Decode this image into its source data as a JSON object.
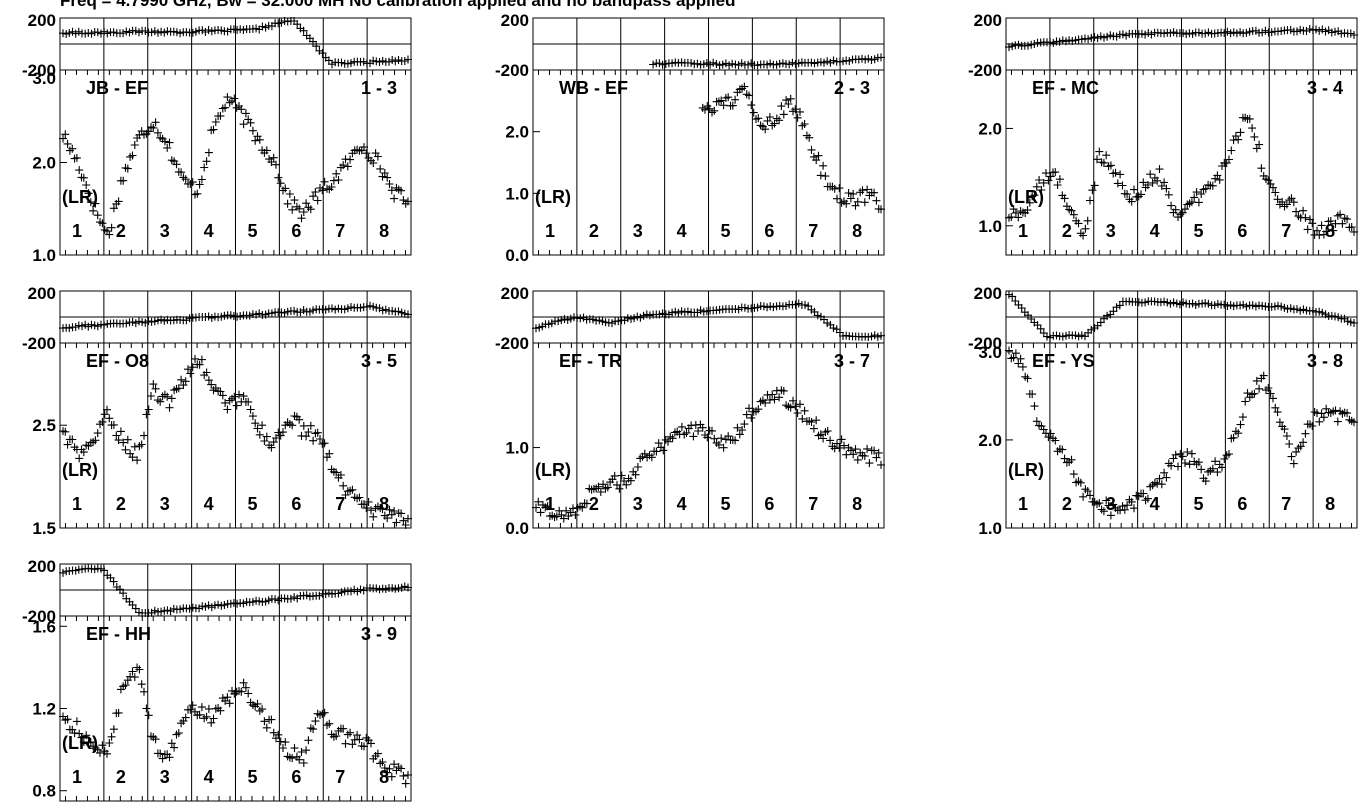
{
  "title": "Freq = 4.7990 GHz, Bw = 32.000 MH   No calibration applied and no bandpass applied",
  "chart_data": [
    {
      "type": "scatter",
      "baseline": "JB - EF",
      "pair": "1 - 3",
      "stokes": "(LR)",
      "channels": [
        "1",
        "2",
        "3",
        "4",
        "5",
        "6",
        "7",
        "8"
      ],
      "phase_ticks": [
        "200",
        "-200"
      ],
      "phase_ylim": [
        -200,
        200
      ],
      "amp_ticks": [
        "3.0",
        "2.0",
        "1.0"
      ],
      "amp_ylim": [
        1.0,
        3.0
      ],
      "amp_values": [
        2.3,
        2.0,
        1.55,
        1.2,
        1.85,
        2.25,
        2.45,
        2.2,
        1.8,
        1.7,
        2.35,
        2.7,
        2.5,
        2.25,
        2.05,
        1.6,
        1.45,
        1.65,
        1.8,
        2.0,
        2.2,
        2.0,
        1.7,
        1.55
      ],
      "phase_values": [
        85,
        88,
        95,
        92,
        100,
        110,
        190,
        -150,
        -140,
        -120
      ]
    },
    {
      "type": "scatter",
      "baseline": "WB - EF",
      "pair": "2 - 3",
      "stokes": "(LR)",
      "channels": [
        "1",
        "2",
        "3",
        "4",
        "5",
        "6",
        "7",
        "8"
      ],
      "phase_ticks": [
        "200",
        "-200"
      ],
      "phase_ylim": [
        -200,
        200
      ],
      "amp_ticks": [
        "2.0",
        "1.0",
        "0.0"
      ],
      "amp_ylim": [
        0.0,
        3.0
      ],
      "amp_values": [
        null,
        null,
        null,
        null,
        null,
        null,
        null,
        null,
        null,
        null,
        null,
        null,
        2.4,
        2.5,
        2.65,
        2.1,
        2.25,
        2.5,
        2.0,
        1.4,
        1.0,
        0.9,
        0.95,
        0.85
      ],
      "phase_values": [
        null,
        null,
        null,
        null,
        -150,
        -155,
        -155,
        -150,
        -130,
        -110
      ]
    },
    {
      "type": "scatter",
      "baseline": "EF - MC",
      "pair": "3 - 4",
      "stokes": "(LR)",
      "channels": [
        "1",
        "2",
        "3",
        "4",
        "5",
        "6",
        "7",
        "8"
      ],
      "phase_ticks": [
        "200",
        "-200"
      ],
      "phase_ylim": [
        -200,
        200
      ],
      "amp_ticks": [
        "2.0",
        "1.0"
      ],
      "amp_ylim": [
        0.7,
        2.6
      ],
      "amp_values": [
        1.1,
        1.15,
        1.4,
        1.55,
        1.2,
        0.85,
        1.75,
        1.6,
        1.25,
        1.4,
        1.55,
        1.15,
        1.2,
        1.35,
        1.5,
        1.85,
        2.2,
        1.55,
        1.25,
        1.2,
        1.0,
        0.95,
        1.05,
        0.95
      ],
      "phase_values": [
        -20,
        10,
        40,
        70,
        80,
        85,
        90,
        100,
        110,
        75
      ]
    },
    {
      "type": "scatter",
      "baseline": "EF - O8",
      "pair": "3 - 5",
      "stokes": "(LR)",
      "channels": [
        "1",
        "2",
        "3",
        "4",
        "5",
        "6",
        "7",
        "8"
      ],
      "phase_ticks": [
        "200",
        "-200"
      ],
      "phase_ylim": [
        -200,
        200
      ],
      "amp_ticks": [
        "2.5",
        "1.5"
      ],
      "amp_ylim": [
        1.5,
        3.3
      ],
      "amp_values": [
        2.45,
        2.2,
        2.35,
        2.6,
        2.35,
        2.2,
        2.85,
        2.7,
        2.95,
        3.15,
        2.85,
        2.7,
        2.8,
        2.5,
        2.25,
        2.6,
        2.45,
        2.4,
        2.1,
        1.85,
        1.7,
        1.65,
        1.6,
        1.55
      ],
      "phase_values": [
        -80,
        -60,
        -40,
        -20,
        0,
        20,
        40,
        60,
        80,
        20
      ]
    },
    {
      "type": "scatter",
      "baseline": "EF - TR",
      "pair": "3 - 7",
      "stokes": "(LR)",
      "channels": [
        "1",
        "2",
        "3",
        "4",
        "5",
        "6",
        "7",
        "8"
      ],
      "phase_ticks": [
        "200",
        "-200"
      ],
      "phase_ylim": [
        -200,
        200
      ],
      "amp_ticks": [
        "1.0",
        "0.0"
      ],
      "amp_ylim": [
        0.0,
        2.3
      ],
      "amp_values": [
        0.25,
        0.2,
        0.15,
        0.3,
        0.5,
        0.55,
        0.6,
        0.8,
        0.95,
        1.15,
        1.25,
        1.2,
        1.1,
        1.05,
        1.35,
        1.6,
        1.7,
        1.55,
        1.4,
        1.2,
        1.05,
        0.95,
        0.9,
        0.85
      ],
      "phase_values": [
        -80,
        0,
        -40,
        20,
        40,
        60,
        80,
        100,
        -140,
        -150
      ]
    },
    {
      "type": "scatter",
      "baseline": "EF - YS",
      "pair": "3 - 8",
      "stokes": "(LR)",
      "channels": [
        "1",
        "2",
        "3",
        "4",
        "5",
        "6",
        "7",
        "8"
      ],
      "phase_ticks": [
        "200",
        "-200"
      ],
      "phase_ylim": [
        -200,
        200
      ],
      "amp_ticks": [
        "3.0",
        "2.0",
        "1.0"
      ],
      "amp_ylim": [
        1.0,
        3.1
      ],
      "amp_values": [
        3.0,
        2.8,
        2.2,
        1.95,
        1.75,
        1.4,
        1.3,
        1.2,
        1.25,
        1.35,
        1.5,
        1.75,
        1.8,
        1.6,
        1.7,
        2.0,
        2.5,
        2.7,
        2.3,
        1.8,
        2.2,
        2.3,
        2.25,
        2.2
      ],
      "phase_values": [
        180,
        -150,
        -145,
        120,
        110,
        100,
        90,
        80,
        40,
        -40
      ]
    },
    {
      "type": "scatter",
      "baseline": "EF - HH",
      "pair": "3 - 9",
      "stokes": "(LR)",
      "channels": [
        "1",
        "2",
        "3",
        "4",
        "5",
        "6",
        "7",
        "8"
      ],
      "phase_ticks": [
        "200",
        "-200"
      ],
      "phase_ylim": [
        -200,
        200
      ],
      "amp_ticks": [
        "1.6",
        "1.2",
        "0.8"
      ],
      "amp_ylim": [
        0.75,
        1.65
      ],
      "amp_values": [
        1.15,
        1.1,
        1.0,
        1.0,
        1.3,
        1.4,
        1.05,
        0.95,
        1.15,
        1.2,
        1.15,
        1.25,
        1.3,
        1.2,
        1.1,
        1.0,
        0.95,
        1.2,
        1.1,
        1.05,
        1.05,
        0.95,
        0.9,
        0.85
      ],
      "phase_values": [
        140,
        170,
        -180,
        -150,
        -120,
        -90,
        -60,
        -30,
        10,
        20
      ]
    }
  ]
}
